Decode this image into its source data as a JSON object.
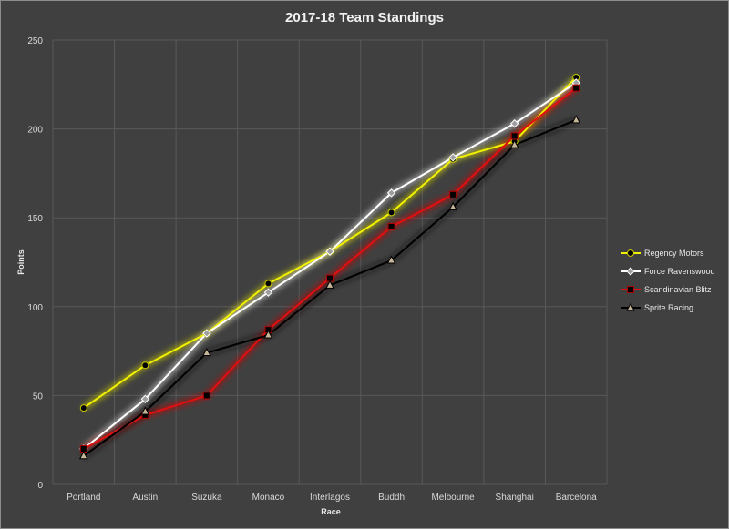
{
  "chart_data": {
    "type": "line",
    "title": "2017-18 Team Standings",
    "xlabel": "Race",
    "ylabel": "Points",
    "categories": [
      "Portland",
      "Austin",
      "Suzuka",
      "Monaco",
      "Interlagos",
      "Buddh",
      "Melbourne",
      "Shanghai",
      "Barcelona"
    ],
    "ylim": [
      0,
      250
    ],
    "yticks": [
      0,
      50,
      100,
      150,
      200,
      250
    ],
    "grid": "vertical and horizontal",
    "legend_position": "right",
    "series": [
      {
        "name": "Regency Motors",
        "color": "#f2f200",
        "marker": "circle",
        "marker_fill": "#000000",
        "marker_stroke": "#c8c800",
        "glow": "#cccc00",
        "values": [
          43,
          67,
          85,
          113,
          131,
          153,
          183,
          193,
          229
        ]
      },
      {
        "name": "Force Ravenswood",
        "color": "#ffffff",
        "marker": "diamond",
        "marker_fill": "#9e9e9e",
        "marker_stroke": "#ffffff",
        "glow": "#d0d0d0",
        "values": [
          20,
          48,
          85,
          108,
          131,
          164,
          184,
          203,
          226
        ]
      },
      {
        "name": "Scandinavian Blitz",
        "color": "#e01010",
        "marker": "square",
        "marker_fill": "#000000",
        "marker_stroke": "#b00000",
        "glow": "#cc0000",
        "values": [
          20,
          39,
          50,
          87,
          116,
          145,
          163,
          196,
          223
        ]
      },
      {
        "name": "Sprite Racing",
        "color": "#000000",
        "marker": "triangle",
        "marker_fill": "#c8b89a",
        "marker_stroke": "#000000",
        "glow": "#1a1a1a",
        "values": [
          16,
          41,
          74,
          84,
          112,
          126,
          156,
          191,
          205
        ]
      }
    ]
  }
}
